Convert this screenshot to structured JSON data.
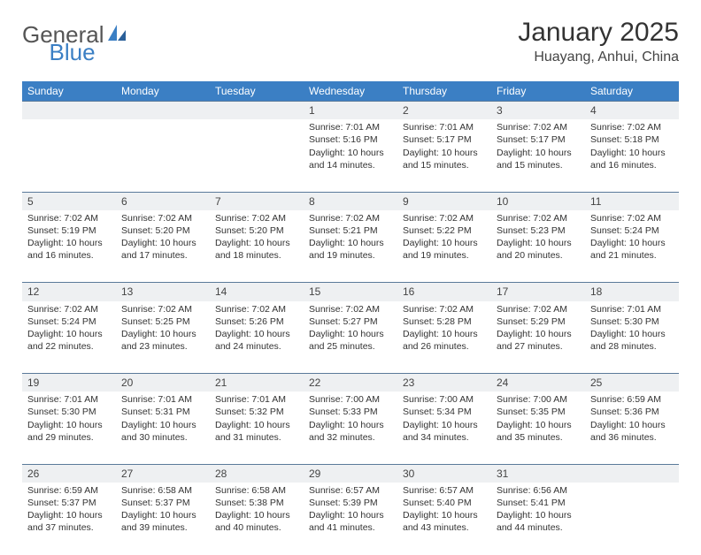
{
  "brand": {
    "part1": "General",
    "part2": "Blue",
    "logo_color": "#3b7fc4",
    "text_color": "#555555"
  },
  "title": "January 2025",
  "location": "Huayang, Anhui, China",
  "header_bg": "#3b7fc4",
  "header_fg": "#ffffff",
  "daynum_bg": "#eef0f2",
  "row_border": "#5a7a9a",
  "days": [
    "Sunday",
    "Monday",
    "Tuesday",
    "Wednesday",
    "Thursday",
    "Friday",
    "Saturday"
  ],
  "weeks": [
    [
      null,
      null,
      null,
      {
        "n": "1",
        "sr": "7:01 AM",
        "ss": "5:16 PM",
        "dl": "10 hours and 14 minutes."
      },
      {
        "n": "2",
        "sr": "7:01 AM",
        "ss": "5:17 PM",
        "dl": "10 hours and 15 minutes."
      },
      {
        "n": "3",
        "sr": "7:02 AM",
        "ss": "5:17 PM",
        "dl": "10 hours and 15 minutes."
      },
      {
        "n": "4",
        "sr": "7:02 AM",
        "ss": "5:18 PM",
        "dl": "10 hours and 16 minutes."
      }
    ],
    [
      {
        "n": "5",
        "sr": "7:02 AM",
        "ss": "5:19 PM",
        "dl": "10 hours and 16 minutes."
      },
      {
        "n": "6",
        "sr": "7:02 AM",
        "ss": "5:20 PM",
        "dl": "10 hours and 17 minutes."
      },
      {
        "n": "7",
        "sr": "7:02 AM",
        "ss": "5:20 PM",
        "dl": "10 hours and 18 minutes."
      },
      {
        "n": "8",
        "sr": "7:02 AM",
        "ss": "5:21 PM",
        "dl": "10 hours and 19 minutes."
      },
      {
        "n": "9",
        "sr": "7:02 AM",
        "ss": "5:22 PM",
        "dl": "10 hours and 19 minutes."
      },
      {
        "n": "10",
        "sr": "7:02 AM",
        "ss": "5:23 PM",
        "dl": "10 hours and 20 minutes."
      },
      {
        "n": "11",
        "sr": "7:02 AM",
        "ss": "5:24 PM",
        "dl": "10 hours and 21 minutes."
      }
    ],
    [
      {
        "n": "12",
        "sr": "7:02 AM",
        "ss": "5:24 PM",
        "dl": "10 hours and 22 minutes."
      },
      {
        "n": "13",
        "sr": "7:02 AM",
        "ss": "5:25 PM",
        "dl": "10 hours and 23 minutes."
      },
      {
        "n": "14",
        "sr": "7:02 AM",
        "ss": "5:26 PM",
        "dl": "10 hours and 24 minutes."
      },
      {
        "n": "15",
        "sr": "7:02 AM",
        "ss": "5:27 PM",
        "dl": "10 hours and 25 minutes."
      },
      {
        "n": "16",
        "sr": "7:02 AM",
        "ss": "5:28 PM",
        "dl": "10 hours and 26 minutes."
      },
      {
        "n": "17",
        "sr": "7:02 AM",
        "ss": "5:29 PM",
        "dl": "10 hours and 27 minutes."
      },
      {
        "n": "18",
        "sr": "7:01 AM",
        "ss": "5:30 PM",
        "dl": "10 hours and 28 minutes."
      }
    ],
    [
      {
        "n": "19",
        "sr": "7:01 AM",
        "ss": "5:30 PM",
        "dl": "10 hours and 29 minutes."
      },
      {
        "n": "20",
        "sr": "7:01 AM",
        "ss": "5:31 PM",
        "dl": "10 hours and 30 minutes."
      },
      {
        "n": "21",
        "sr": "7:01 AM",
        "ss": "5:32 PM",
        "dl": "10 hours and 31 minutes."
      },
      {
        "n": "22",
        "sr": "7:00 AM",
        "ss": "5:33 PM",
        "dl": "10 hours and 32 minutes."
      },
      {
        "n": "23",
        "sr": "7:00 AM",
        "ss": "5:34 PM",
        "dl": "10 hours and 34 minutes."
      },
      {
        "n": "24",
        "sr": "7:00 AM",
        "ss": "5:35 PM",
        "dl": "10 hours and 35 minutes."
      },
      {
        "n": "25",
        "sr": "6:59 AM",
        "ss": "5:36 PM",
        "dl": "10 hours and 36 minutes."
      }
    ],
    [
      {
        "n": "26",
        "sr": "6:59 AM",
        "ss": "5:37 PM",
        "dl": "10 hours and 37 minutes."
      },
      {
        "n": "27",
        "sr": "6:58 AM",
        "ss": "5:37 PM",
        "dl": "10 hours and 39 minutes."
      },
      {
        "n": "28",
        "sr": "6:58 AM",
        "ss": "5:38 PM",
        "dl": "10 hours and 40 minutes."
      },
      {
        "n": "29",
        "sr": "6:57 AM",
        "ss": "5:39 PM",
        "dl": "10 hours and 41 minutes."
      },
      {
        "n": "30",
        "sr": "6:57 AM",
        "ss": "5:40 PM",
        "dl": "10 hours and 43 minutes."
      },
      {
        "n": "31",
        "sr": "6:56 AM",
        "ss": "5:41 PM",
        "dl": "10 hours and 44 minutes."
      },
      null
    ]
  ],
  "labels": {
    "sunrise": "Sunrise: ",
    "sunset": "Sunset: ",
    "daylight": "Daylight: "
  }
}
